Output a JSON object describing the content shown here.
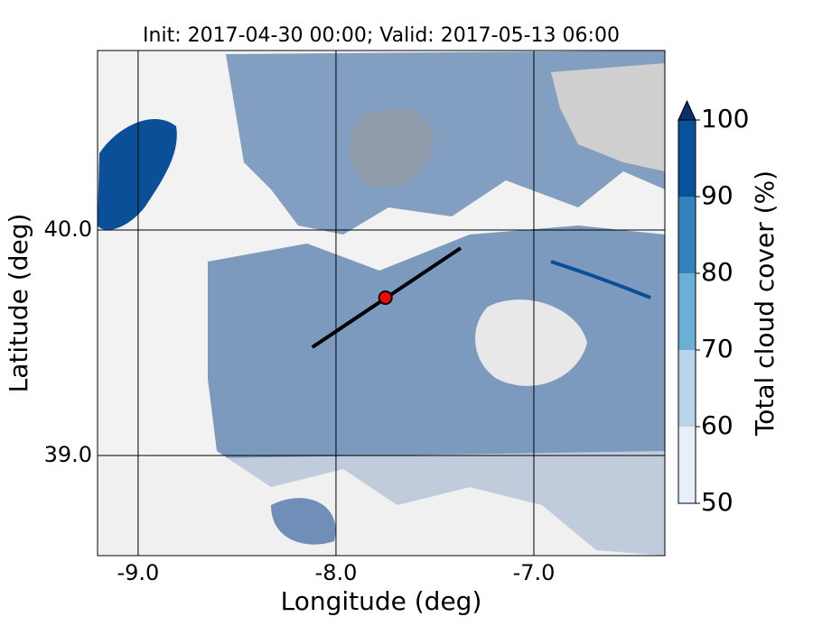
{
  "chart_data": {
    "type": "map",
    "title": "Init: 2017-04-30 00:00; Valid: 2017-05-13 06:00",
    "xlabel": "Longitude (deg)",
    "ylabel": "Latitude (deg)",
    "xlim": [
      -9.205,
      -6.338
    ],
    "ylim": [
      38.556,
      40.796
    ],
    "xticks": [
      {
        "value": -9,
        "label": "-9.0"
      },
      {
        "value": -8,
        "label": "-8.0"
      },
      {
        "value": -7,
        "label": "-7.0"
      }
    ],
    "yticks": [
      {
        "value": 39,
        "label": "39.0"
      },
      {
        "value": 40,
        "label": "40.0"
      }
    ],
    "grid": true,
    "transect": {
      "lon": [
        -8.12,
        -7.37
      ],
      "lat": [
        39.48,
        39.92
      ],
      "color": "#000000"
    },
    "point": {
      "lon": -7.75,
      "lat": 39.7,
      "color": "#ff0000"
    },
    "colorbar": {
      "label": "Total cloud cover (%)",
      "lim": [
        50,
        100
      ],
      "ticks": [
        50,
        60,
        70,
        80,
        90,
        100
      ],
      "levels": [
        50,
        60,
        70,
        80,
        90,
        100
      ],
      "colors": [
        "#e6eff9",
        "#b9d4ea",
        "#6baed6",
        "#3182bd",
        "#08519c"
      ],
      "extend": "max",
      "over_color": "#08306b"
    }
  }
}
